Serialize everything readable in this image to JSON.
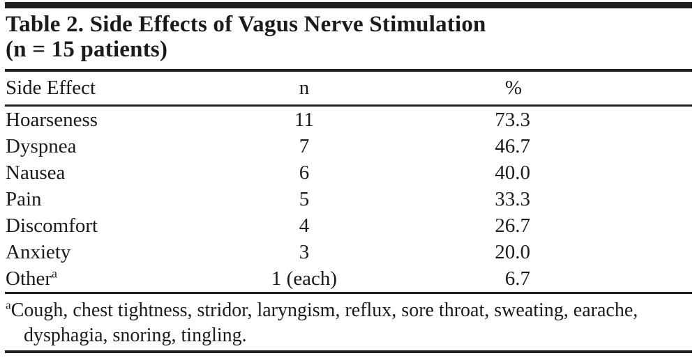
{
  "colors": {
    "ink": "#1b1b1b",
    "rule": "#212121",
    "background": "#ffffff"
  },
  "table": {
    "title": "Table 2. Side Effects of Vagus Nerve Stimulation",
    "subtitle": "(n = 15 patients)",
    "columns": {
      "side_effect": "Side Effect",
      "n": "n",
      "percent": "%"
    },
    "rows": [
      {
        "label": "Hoarseness",
        "n": "11",
        "percent": "73.3"
      },
      {
        "label": "Dyspnea",
        "n": "7",
        "percent": "46.7"
      },
      {
        "label": "Nausea",
        "n": "6",
        "percent": "40.0"
      },
      {
        "label": "Pain",
        "n": "5",
        "percent": "33.3"
      },
      {
        "label": "Discomfort",
        "n": "4",
        "percent": "26.7"
      },
      {
        "label": "Anxiety",
        "n": "3",
        "percent": "20.0"
      },
      {
        "label": "Other",
        "marker": "a",
        "n": "1 (each)",
        "percent": "6.7"
      }
    ],
    "footnote": {
      "marker": "a",
      "text": "Cough, chest tightness, stridor, laryngism, reflux, sore throat, sweating, earache, dysphagia, snoring, tingling."
    }
  }
}
